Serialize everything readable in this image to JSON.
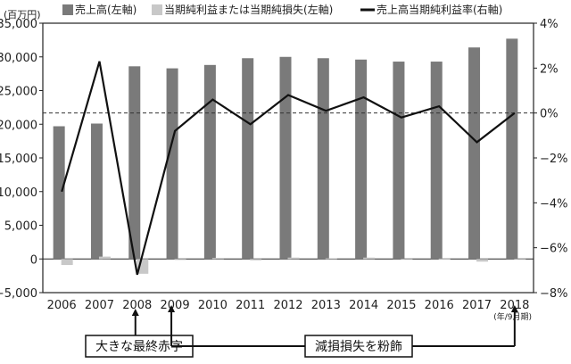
{
  "chart_data": {
    "type": "bar",
    "left_unit": "(百万円)",
    "period_note": "(年/9月期)",
    "categories": [
      "2006",
      "2007",
      "2008",
      "2009",
      "2010",
      "2011",
      "2012",
      "2013",
      "2014",
      "2015",
      "2016",
      "2017",
      "2018"
    ],
    "series": [
      {
        "name": "売上高(左軸)",
        "type": "bar",
        "axis": "left",
        "color": "#7a7a7a",
        "values": [
          19700,
          20100,
          28600,
          28300,
          28800,
          29800,
          30000,
          29800,
          29600,
          29300,
          29300,
          31400,
          32700
        ]
      },
      {
        "name": "当期純利益または当期純損失(左軸)",
        "type": "bar",
        "axis": "left",
        "color": "#c8c8c8",
        "values": [
          -900,
          350,
          -2200,
          -150,
          150,
          -200,
          200,
          100,
          200,
          -100,
          50,
          -400,
          0
        ]
      },
      {
        "name": "売上高当期純利益率(右軸)",
        "type": "line",
        "axis": "right",
        "color": "#111111",
        "values": [
          -3.5,
          2.3,
          -7.2,
          -0.8,
          0.6,
          -0.5,
          0.8,
          0.1,
          0.7,
          -0.2,
          0.3,
          -1.3,
          0.0
        ]
      }
    ],
    "y_left": {
      "min": -5000,
      "max": 35000,
      "ticks": [
        -5000,
        0,
        5000,
        10000,
        15000,
        20000,
        25000,
        30000,
        35000
      ],
      "tick_labels": [
        "−5,000",
        "0",
        "5,000",
        "10,000",
        "15,000",
        "20,000",
        "25,000",
        "30,000",
        "35,000"
      ]
    },
    "y_right": {
      "min": -8,
      "max": 4,
      "ticks": [
        -8,
        -6,
        -4,
        -2,
        0,
        2,
        4
      ],
      "tick_labels": [
        "−8%",
        "−6%",
        "−4%",
        "−2%",
        "0%",
        "2%",
        "4%"
      ]
    },
    "reference_line": {
      "axis": "right",
      "value": 0,
      "style": "dashed"
    },
    "annotations": [
      {
        "label": "大きな最終赤字",
        "from": "2008",
        "to": "2008"
      },
      {
        "label": "減損損失を粉飾",
        "from": "2009",
        "to": "2018"
      }
    ],
    "grid": false,
    "legend_position": "top"
  }
}
